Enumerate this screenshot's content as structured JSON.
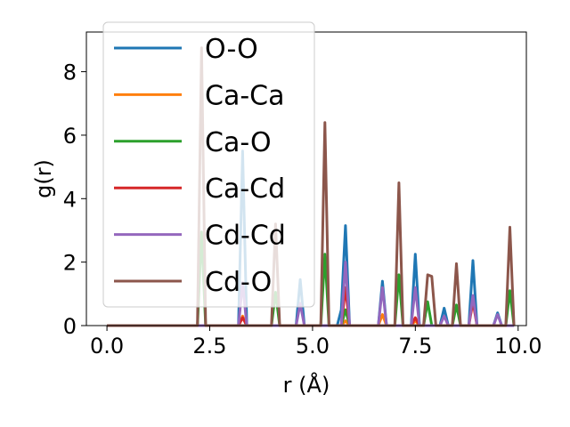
{
  "chart_data": {
    "type": "line",
    "xlabel": "r (Å)",
    "ylabel": "g(r)",
    "xlim": [
      -0.5,
      10.2
    ],
    "ylim": [
      0,
      9.25
    ],
    "xticks": [
      0.0,
      2.5,
      5.0,
      7.5,
      10.0
    ],
    "xtick_labels": [
      "0.0",
      "2.5",
      "5.0",
      "7.5",
      "10.0"
    ],
    "yticks": [
      0,
      2,
      4,
      6,
      8
    ],
    "ytick_labels": [
      "0",
      "2",
      "4",
      "6",
      "8"
    ],
    "grid": false,
    "legend_position": "upper-left",
    "series": [
      {
        "name": "O-O",
        "color": "#1f77b4",
        "points": [
          [
            0,
            0
          ],
          [
            2.2,
            0
          ],
          [
            2.3,
            0
          ],
          [
            2.4,
            0
          ],
          [
            3.1,
            0
          ],
          [
            3.2,
            0
          ],
          [
            3.3,
            5.5
          ],
          [
            3.4,
            0
          ],
          [
            4.6,
            0
          ],
          [
            4.7,
            1.45
          ],
          [
            4.8,
            0
          ],
          [
            5.6,
            0
          ],
          [
            5.7,
            0.5
          ],
          [
            5.8,
            3.15
          ],
          [
            5.9,
            0
          ],
          [
            6.6,
            0
          ],
          [
            6.7,
            1.4
          ],
          [
            6.8,
            0
          ],
          [
            7.4,
            0
          ],
          [
            7.5,
            2.25
          ],
          [
            7.6,
            0
          ],
          [
            8.1,
            0
          ],
          [
            8.2,
            0.55
          ],
          [
            8.3,
            0
          ],
          [
            8.8,
            0
          ],
          [
            8.9,
            2.05
          ],
          [
            9.0,
            0
          ],
          [
            9.4,
            0
          ],
          [
            9.5,
            0.4
          ],
          [
            9.6,
            0
          ],
          [
            9.8,
            0
          ],
          [
            9.9,
            0
          ]
        ]
      },
      {
        "name": "Ca-Ca",
        "color": "#ff7f0e",
        "points": [
          [
            0,
            0
          ],
          [
            3.2,
            0
          ],
          [
            3.3,
            0.3
          ],
          [
            3.4,
            0
          ],
          [
            5.7,
            0
          ],
          [
            5.8,
            0.15
          ],
          [
            5.9,
            0
          ],
          [
            6.6,
            0
          ],
          [
            6.7,
            0.35
          ],
          [
            6.8,
            0
          ],
          [
            7.4,
            0
          ],
          [
            7.5,
            0.15
          ],
          [
            7.6,
            0
          ],
          [
            9.8,
            0
          ],
          [
            9.9,
            0
          ]
        ]
      },
      {
        "name": "Ca-O",
        "color": "#2ca02c",
        "points": [
          [
            0,
            0
          ],
          [
            2.2,
            0
          ],
          [
            2.3,
            2.95
          ],
          [
            2.4,
            0
          ],
          [
            4.0,
            0
          ],
          [
            4.1,
            1.05
          ],
          [
            4.2,
            0
          ],
          [
            5.2,
            0
          ],
          [
            5.3,
            2.25
          ],
          [
            5.4,
            0
          ],
          [
            5.7,
            0
          ],
          [
            5.8,
            0.5
          ],
          [
            5.9,
            0
          ],
          [
            7.0,
            0
          ],
          [
            7.1,
            1.6
          ],
          [
            7.2,
            0
          ],
          [
            7.7,
            0
          ],
          [
            7.8,
            0.75
          ],
          [
            7.9,
            0
          ],
          [
            8.4,
            0
          ],
          [
            8.5,
            0.65
          ],
          [
            8.6,
            0
          ],
          [
            9.7,
            0
          ],
          [
            9.8,
            1.1
          ],
          [
            9.9,
            0
          ]
        ]
      },
      {
        "name": "Ca-Cd",
        "color": "#d62728",
        "points": [
          [
            0,
            0
          ],
          [
            3.2,
            0
          ],
          [
            3.3,
            0.25
          ],
          [
            3.4,
            0
          ],
          [
            5.7,
            0
          ],
          [
            5.8,
            1.2
          ],
          [
            5.9,
            0
          ],
          [
            7.4,
            0
          ],
          [
            7.5,
            0.25
          ],
          [
            7.6,
            0
          ],
          [
            8.8,
            0
          ],
          [
            8.9,
            0.75
          ],
          [
            9.0,
            0
          ],
          [
            9.8,
            0
          ],
          [
            9.9,
            0
          ]
        ]
      },
      {
        "name": "Cd-Cd",
        "color": "#9467bd",
        "points": [
          [
            0,
            0
          ],
          [
            3.2,
            0
          ],
          [
            3.3,
            1.35
          ],
          [
            3.4,
            0
          ],
          [
            4.6,
            0
          ],
          [
            4.7,
            0.7
          ],
          [
            4.8,
            0
          ],
          [
            5.7,
            0
          ],
          [
            5.8,
            2.0
          ],
          [
            5.9,
            0
          ],
          [
            6.6,
            0
          ],
          [
            6.7,
            1.2
          ],
          [
            6.8,
            0
          ],
          [
            7.4,
            0
          ],
          [
            7.5,
            1.2
          ],
          [
            7.6,
            0
          ],
          [
            8.1,
            0
          ],
          [
            8.2,
            0.3
          ],
          [
            8.3,
            0
          ],
          [
            8.8,
            0
          ],
          [
            8.9,
            0.95
          ],
          [
            9.0,
            0
          ],
          [
            9.4,
            0
          ],
          [
            9.5,
            0.35
          ],
          [
            9.6,
            0
          ],
          [
            9.8,
            0
          ],
          [
            9.9,
            0
          ]
        ]
      },
      {
        "name": "Cd-O",
        "color": "#8c564b",
        "points": [
          [
            0,
            0
          ],
          [
            2.2,
            0
          ],
          [
            2.3,
            8.75
          ],
          [
            2.4,
            0
          ],
          [
            4.0,
            0
          ],
          [
            4.1,
            3.2
          ],
          [
            4.2,
            0
          ],
          [
            5.2,
            0
          ],
          [
            5.3,
            6.4
          ],
          [
            5.4,
            0
          ],
          [
            7.0,
            0
          ],
          [
            7.1,
            4.5
          ],
          [
            7.2,
            0
          ],
          [
            7.7,
            0
          ],
          [
            7.8,
            1.6
          ],
          [
            7.9,
            1.55
          ],
          [
            8.0,
            0
          ],
          [
            8.4,
            0
          ],
          [
            8.5,
            1.95
          ],
          [
            8.6,
            0
          ],
          [
            9.7,
            0
          ],
          [
            9.8,
            3.1
          ],
          [
            9.9,
            0
          ]
        ]
      }
    ]
  }
}
